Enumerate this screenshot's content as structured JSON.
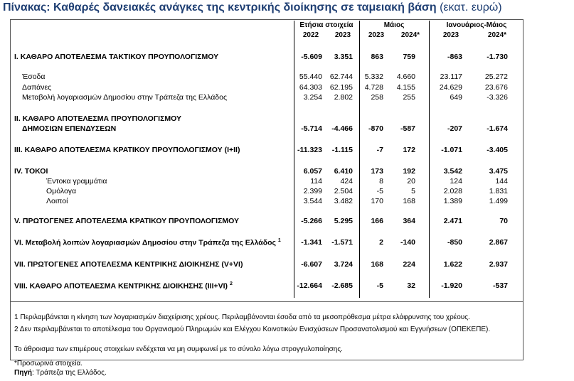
{
  "title": {
    "text": "Πίνακας: Καθαρές δανειακές ανάγκες της κεντρικής διοίκησης σε ταμειακή βάση",
    "unit": "(εκατ. ευρώ)"
  },
  "headers": {
    "groups": [
      "Ετήσια στοιχεία",
      "Μάιος",
      "Ιανουάριος-Μάιος"
    ],
    "years": [
      "2022",
      "2023",
      "2023",
      "2024*",
      "2023",
      "2024*"
    ]
  },
  "rows": [
    {
      "label": "I. ΚΑΘΑΡΟ ΑΠΟΤΕΛΕΣΜΑ  ΤΑΚΤΙΚΟΥ ΠΡΟΥΠΟΛΟΓΙΣΜΟΥ",
      "values": [
        "-5.609",
        "3.351",
        "863",
        "759",
        "-863",
        "-1.730"
      ]
    },
    {
      "label": "Έσοδα",
      "values": [
        "55.440",
        "62.744",
        "5.332",
        "4.660",
        "23.117",
        "25.272"
      ]
    },
    {
      "label": "Δαπάνες",
      "values": [
        "64.303",
        "62.195",
        "4.728",
        "4.155",
        "24.629",
        "23.676"
      ]
    },
    {
      "label": "Μεταβολή λογαριασμών Δημοσίου στην Τράπεζα της Ελλάδος",
      "values": [
        "3.254",
        "2.802",
        "258",
        "255",
        "649",
        "-3.326"
      ]
    },
    {
      "label": "II. ΚΑΘΑΡΟ ΑΠΟΤΕΛΕΣΜΑ ΠΡΟΥΠΟΛΟΓΙΣΜΟΥ",
      "label2": "ΔΗΜΟΣΙΩΝ ΕΠΕΝΔΥΣΕΩΝ",
      "values": [
        "-5.714",
        "-4.466",
        "-870",
        "-587",
        "-207",
        "-1.674"
      ]
    },
    {
      "label": "III. ΚΑΘΑΡΟ ΑΠΟΤΕΛΕΣΜΑ ΚΡΑΤΙΚΟΥ ΠΡΟΥΠΟΛΟΓΙΣΜΟΥ (I+II)",
      "values": [
        "-11.323",
        "-1.115",
        "-7",
        "172",
        "-1.071",
        "-3.405"
      ]
    },
    {
      "label": "IV. ΤΟΚΟΙ",
      "values": [
        "6.057",
        "6.410",
        "173",
        "192",
        "3.542",
        "3.475"
      ]
    },
    {
      "label": "Έντοκα γραμμάτια",
      "values": [
        "114",
        "424",
        "8",
        "20",
        "124",
        "144"
      ]
    },
    {
      "label": "Ομόλογα",
      "values": [
        "2.399",
        "2.504",
        "-5",
        "5",
        "2.028",
        "1.831"
      ]
    },
    {
      "label": "Λοιποί",
      "values": [
        "3.544",
        "3.482",
        "170",
        "168",
        "1.389",
        "1.499"
      ]
    },
    {
      "label": "V. ΠΡΩΤΟΓΕΝΕΣ ΑΠΟΤΕΛΕΣΜΑ  ΚΡΑΤΙΚΟΥ ΠΡΟΥΠΟΛΟΓΙΣΜΟΥ",
      "values": [
        "-5.266",
        "5.295",
        "166",
        "364",
        "2.471",
        "70"
      ]
    },
    {
      "label": "VI. Μεταβολή λοιπών λογαριασμών Δημοσίου στην Τράπεζα της Ελλάδος",
      "sup": "1",
      "values": [
        "-1.341",
        "-1.571",
        "2",
        "-140",
        "-850",
        "2.867"
      ]
    },
    {
      "label": "VII. ΠΡΩΤΟΓΕΝΕΣ ΑΠΟΤΕΛΕΣΜΑ ΚΕΝΤΡΙΚΗΣ ΔΙΟΙΚΗΣΗΣ (V+VI)",
      "values": [
        "-6.607",
        "3.724",
        "168",
        "224",
        "1.622",
        "2.937"
      ]
    },
    {
      "label": "VIII. ΚΑΘΑΡΟ ΑΠΟΤΕΛΕΣΜΑ ΚΕΝΤΡΙΚΗΣ ΔΙΟΙΚΗΣΗΣ (III+VI)",
      "sup": "2",
      "values": [
        "-12.664",
        "-2.685",
        "-5",
        "32",
        "-1.920",
        "-537"
      ]
    }
  ],
  "notes": {
    "n1": "1 Περιλαμβάνεται η κίνηση των λογαριασμών διαχείρισης χρέους. Περιλαμβάνονται έσοδα από τα μεσοπρόθεσμα μέτρα ελάφρυνσης του χρέους.",
    "n2": "2 Δεν περιλαμβάνεται το αποτέλεσμα του Οργανισμού Πληρωμών και Ελέγχου Κοινοτικών Ενισχύσεων Προσανατολισμού και Εγγυήσεων (ΟΠΕΚΕΠΕ).",
    "rounding": "Το άθροισμα των επιμέρους στοιχείων ενδέχεται να μη συμφωνεί με το σύνολο λόγω στρογγυλοποίησης.",
    "provisional": "*Προσωρινά στοιχεία.",
    "source_label": "Πηγή",
    "source_text": ": Τράπεζα της Ελλάδος."
  }
}
